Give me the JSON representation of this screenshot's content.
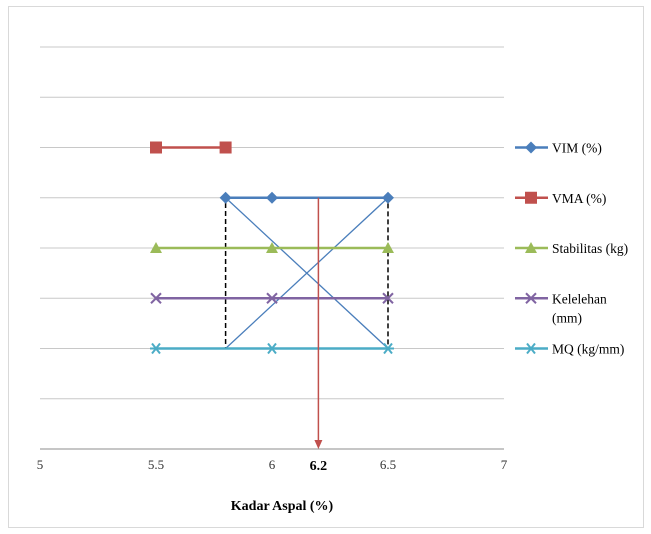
{
  "chart_data": {
    "type": "line",
    "title": "",
    "xlabel": "Kadar Aspal (%)",
    "ylabel": "",
    "xlim": [
      5,
      7
    ],
    "x_ticks": [
      5,
      5.5,
      6,
      6.5,
      7
    ],
    "x_tick_labels": [
      "5",
      "5.5",
      "6",
      "6.5",
      "7"
    ],
    "ylim": [
      0,
      8
    ],
    "grid": true,
    "legend_position": "right",
    "series": [
      {
        "name": "VIM (%)",
        "color": "#4a7ebb",
        "marker": "diamond",
        "points": [
          [
            5.8,
            5
          ],
          [
            6,
            5
          ],
          [
            6.5,
            5
          ]
        ]
      },
      {
        "name": "VMA (%)",
        "color": "#c0504d",
        "marker": "square",
        "points": [
          [
            5.5,
            6
          ],
          [
            5.8,
            6
          ]
        ]
      },
      {
        "name": "Stabilitas (kg)",
        "color": "#9bbb59",
        "marker": "triangle",
        "points": [
          [
            5.5,
            4
          ],
          [
            6,
            4
          ],
          [
            6.5,
            4
          ]
        ]
      },
      {
        "name": "Kelelehan (mm)",
        "color": "#8064a2",
        "marker": "x",
        "points": [
          [
            5.5,
            3
          ],
          [
            6,
            3
          ],
          [
            6.5,
            3
          ]
        ]
      },
      {
        "name": "MQ (kg/mm)",
        "color": "#4bacc6",
        "marker": "star",
        "points": [
          [
            5.5,
            2
          ],
          [
            6,
            2
          ],
          [
            6.5,
            2
          ]
        ]
      }
    ],
    "annotations": {
      "cross_lines": [
        {
          "from": [
            5.8,
            5
          ],
          "to": [
            6.5,
            2
          ],
          "color": "#4a7ebb"
        },
        {
          "from": [
            5.8,
            2
          ],
          "to": [
            6.5,
            5
          ],
          "color": "#4a7ebb"
        }
      ],
      "dashed_box": {
        "x": [
          5.8,
          6.5
        ],
        "y": [
          2,
          5
        ],
        "color": "#000000"
      },
      "optimum": {
        "x": 6.2,
        "label": "6.2",
        "color": "#c0504d"
      }
    }
  }
}
